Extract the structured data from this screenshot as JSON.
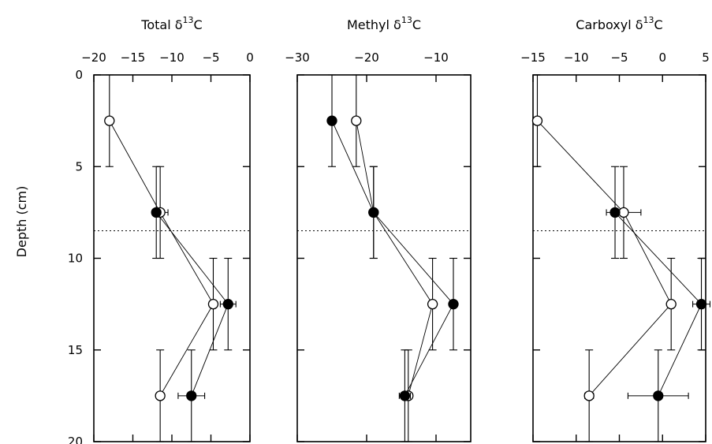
{
  "chart_data": {
    "type": "scatter",
    "y_axis": {
      "label": "Depth (cm)",
      "ticks": [
        0,
        5,
        10,
        15,
        20
      ],
      "ylim": [
        0,
        20
      ],
      "inverted": true
    },
    "reference_depth": 8.5,
    "panels": [
      {
        "title_main": "Total δ",
        "title_sup": "13",
        "title_end": "C",
        "xlim": [
          -20,
          0
        ],
        "xticks": [
          -20,
          -15,
          -10,
          -5,
          0
        ],
        "series": [
          {
            "marker": "open-circle",
            "connected": true,
            "points": [
              {
                "x": -18,
                "y": 2.5,
                "yerr": 2.5
              },
              {
                "x": -11.5,
                "y": 7.5,
                "yerr": 2.5,
                "xerr": 1
              },
              {
                "x": -4.7,
                "y": 12.5,
                "yerr": 2.5
              },
              {
                "x": -11.5,
                "y": 17.5,
                "yerr": 2.5,
                "xerr": 0.5
              }
            ]
          },
          {
            "marker": "filled-circle",
            "connected": true,
            "points": [
              {
                "x": -12,
                "y": 7.5,
                "yerr": 2.5
              },
              {
                "x": -2.8,
                "y": 12.5,
                "yerr": 2.5,
                "xerr": 1
              },
              {
                "x": -7.5,
                "y": 17.5,
                "yerr": 2.5,
                "xerr": 1.7
              }
            ]
          }
        ]
      },
      {
        "title_main": "Methyl δ",
        "title_sup": "13",
        "title_end": "C",
        "xlim": [
          -30,
          -5
        ],
        "xticks": [
          -30,
          -20,
          -10
        ],
        "series": [
          {
            "marker": "open-circle",
            "connected": true,
            "points": [
              {
                "x": -21.5,
                "y": 2.5,
                "yerr": 2.5
              },
              {
                "x": -19,
                "y": 7.5,
                "yerr": 2.5
              },
              {
                "x": -10.5,
                "y": 12.5,
                "yerr": 2.5
              },
              {
                "x": -14,
                "y": 17.5,
                "yerr": 2.5
              }
            ]
          },
          {
            "marker": "filled-circle",
            "connected": true,
            "points": [
              {
                "x": -25,
                "y": 2.5,
                "yerr": 2.5
              },
              {
                "x": -19,
                "y": 7.5,
                "yerr": 2.5
              },
              {
                "x": -7.5,
                "y": 12.5,
                "yerr": 2.5
              },
              {
                "x": -14.5,
                "y": 17.5,
                "yerr": 2.5,
                "xerr": 0.8
              }
            ]
          }
        ]
      },
      {
        "title_main": "Carboxyl δ",
        "title_sup": "13",
        "title_end": "C",
        "xlim": [
          -15,
          5
        ],
        "xticks": [
          -15,
          -10,
          -5,
          0,
          5
        ],
        "series": [
          {
            "marker": "open-circle",
            "connected": true,
            "points": [
              {
                "x": -14.5,
                "y": 2.5,
                "yerr": 2.5
              },
              {
                "x": -4.5,
                "y": 7.5,
                "yerr": 2.5,
                "xerr": 2
              },
              {
                "x": 1,
                "y": 12.5,
                "yerr": 2.5
              },
              {
                "x": -8.5,
                "y": 17.5,
                "yerr": 2.5,
                "xerr": 0.5
              }
            ]
          },
          {
            "marker": "filled-circle",
            "connected": true,
            "points": [
              {
                "x": -5.5,
                "y": 7.5,
                "yerr": 2.5
              },
              {
                "x": 4.5,
                "y": 12.5,
                "yerr": 2.5,
                "xerr": 1
              },
              {
                "x": -0.5,
                "y": 17.5,
                "yerr": 2.5,
                "xerr": 3.5
              }
            ]
          }
        ]
      }
    ]
  }
}
